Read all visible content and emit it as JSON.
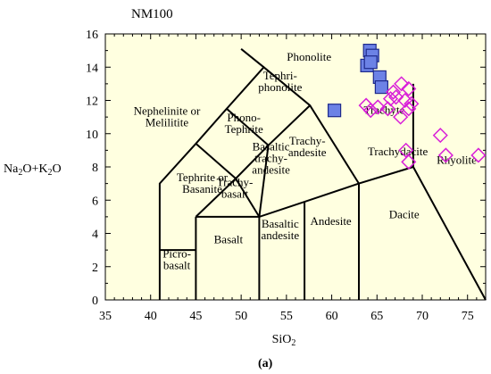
{
  "chart_data": {
    "type": "scatter",
    "title": "NM100",
    "xlabel": "SiO",
    "xlabel_sub": "2",
    "ylabel": {
      "a": "Na",
      "a_sub": "2",
      "b": "O+K",
      "b_sub": "2",
      "c": "O"
    },
    "xlim": [
      35,
      77
    ],
    "ylim": [
      0,
      16
    ],
    "x_ticks": [
      35,
      40,
      45,
      50,
      55,
      60,
      65,
      70,
      75
    ],
    "y_ticks": [
      0,
      2,
      4,
      6,
      8,
      10,
      12,
      14,
      16
    ],
    "panel_label": "(a)",
    "background": "#ffffe0",
    "boundaries": [
      [
        [
          41,
          0
        ],
        [
          41,
          7
        ],
        [
          45,
          9.4
        ],
        [
          48.4,
          11.5
        ],
        [
          52.5,
          14
        ],
        [
          57.6,
          11.7
        ],
        [
          63,
          7
        ],
        [
          69,
          8
        ],
        [
          77,
          0
        ]
      ],
      [
        [
          41,
          3
        ],
        [
          45,
          3
        ]
      ],
      [
        [
          45,
          0
        ],
        [
          45,
          5
        ]
      ],
      [
        [
          45,
          5
        ],
        [
          52,
          5
        ],
        [
          57,
          5.9
        ],
        [
          63,
          7
        ]
      ],
      [
        [
          52,
          0
        ],
        [
          52,
          5
        ]
      ],
      [
        [
          57,
          0
        ],
        [
          57,
          5.9
        ]
      ],
      [
        [
          63,
          0
        ],
        [
          63,
          7
        ]
      ],
      [
        [
          45,
          5
        ],
        [
          49.4,
          7.3
        ],
        [
          52,
          5
        ]
      ],
      [
        [
          49.4,
          7.3
        ],
        [
          53,
          9.3
        ],
        [
          57.6,
          11.7
        ]
      ],
      [
        [
          53,
          9.3
        ],
        [
          48.4,
          11.5
        ]
      ],
      [
        [
          53,
          9.3
        ],
        [
          52,
          5
        ]
      ],
      [
        [
          49.4,
          7.3
        ],
        [
          45,
          9.4
        ]
      ],
      [
        [
          52.5,
          14
        ],
        [
          50,
          15.1
        ]
      ],
      [
        [
          69,
          8
        ],
        [
          69,
          13
        ]
      ]
    ],
    "field_labels": [
      {
        "lines": [
          "Phonolite"
        ],
        "x": 57.5,
        "y": 14.4
      },
      {
        "lines": [
          "Tephri-",
          "phonolite"
        ],
        "x": 54.3,
        "y": 12.9
      },
      {
        "lines": [
          "Nephelinite or",
          "Melilitite"
        ],
        "x": 41.8,
        "y": 10.8
      },
      {
        "lines": [
          "Phono-",
          "Tephrite"
        ],
        "x": 50.3,
        "y": 10.4
      },
      {
        "lines": [
          "Trachyte"
        ],
        "x": 65.8,
        "y": 11.2
      },
      {
        "lines": [
          "Trachy-",
          "andesite"
        ],
        "x": 57.3,
        "y": 9.0
      },
      {
        "lines": [
          "Trachydacite"
        ],
        "x": 67.3,
        "y": 8.7
      },
      {
        "lines": [
          "Rhyolite"
        ],
        "x": 73.8,
        "y": 8.2
      },
      {
        "lines": [
          "Basaltic",
          "trachy-",
          "andesite"
        ],
        "x": 53.3,
        "y": 8.3
      },
      {
        "lines": [
          "Tephrite or",
          "Basanite"
        ],
        "x": 45.7,
        "y": 6.8
      },
      {
        "lines": [
          "Trachy-",
          "basalt"
        ],
        "x": 49.3,
        "y": 6.5
      },
      {
        "lines": [
          "Andesite"
        ],
        "x": 59.9,
        "y": 4.5
      },
      {
        "lines": [
          "Basaltic",
          "andesite"
        ],
        "x": 54.3,
        "y": 4.0
      },
      {
        "lines": [
          "Dacite"
        ],
        "x": 68.0,
        "y": 4.9
      },
      {
        "lines": [
          "Basalt"
        ],
        "x": 48.6,
        "y": 3.4
      },
      {
        "lines": [
          "Picro-",
          "basalt"
        ],
        "x": 42.9,
        "y": 2.2
      }
    ],
    "series": [
      {
        "marker": "square",
        "color": "#6c82e6",
        "points": [
          {
            "x": 64.2,
            "y": 15.0
          },
          {
            "x": 64.5,
            "y": 14.7
          },
          {
            "x": 63.9,
            "y": 14.1
          },
          {
            "x": 64.3,
            "y": 14.3
          },
          {
            "x": 65.3,
            "y": 13.4
          },
          {
            "x": 65.5,
            "y": 12.8
          },
          {
            "x": 60.3,
            "y": 11.4
          }
        ]
      },
      {
        "marker": "diamond",
        "color": "#d81ed8",
        "points": [
          {
            "x": 67.7,
            "y": 13.0
          },
          {
            "x": 68.5,
            "y": 12.7
          },
          {
            "x": 66.8,
            "y": 12.5
          },
          {
            "x": 66.5,
            "y": 12.1
          },
          {
            "x": 67.1,
            "y": 12.2
          },
          {
            "x": 68.1,
            "y": 12.0
          },
          {
            "x": 68.8,
            "y": 11.8
          },
          {
            "x": 63.8,
            "y": 11.7
          },
          {
            "x": 65.1,
            "y": 11.6
          },
          {
            "x": 66.2,
            "y": 11.5
          },
          {
            "x": 64.3,
            "y": 11.4
          },
          {
            "x": 68.5,
            "y": 11.5
          },
          {
            "x": 67.6,
            "y": 11.0
          },
          {
            "x": 68.2,
            "y": 9.0
          },
          {
            "x": 68.5,
            "y": 8.3
          },
          {
            "x": 72.0,
            "y": 9.9
          },
          {
            "x": 72.6,
            "y": 8.7
          },
          {
            "x": 76.2,
            "y": 8.7
          }
        ]
      }
    ]
  }
}
